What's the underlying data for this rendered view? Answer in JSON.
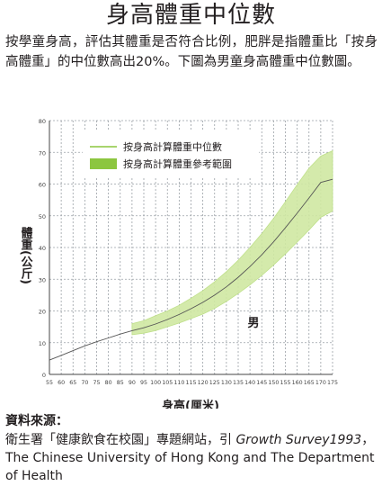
{
  "header": {
    "title": "身高體重中位數",
    "intro": "按學童身高，評估其體重是否符合比例，肥胖是指體重比「按身高體重」的中位數高出20%。下圖為男童身高體重中位數圖。"
  },
  "source": {
    "heading": "資料來源：",
    "text_plain_1": "衛生署「健康飲食在校園」專題網站，引 ",
    "text_italic": "Growth Survey1993",
    "text_plain_2": "，The Chinese University of Hong Kong and The Department of Health"
  },
  "colors": {
    "median_line": "#8cc63f",
    "range_band": "#cfe8a2",
    "band_edge": "#bfe08a",
    "grid": "#9aa0a6",
    "axis": "#444444"
  },
  "chart_data": {
    "type": "line",
    "title": "",
    "xlabel": "身高(厘米)",
    "ylabel": "體重(公斤)",
    "xlim": [
      55,
      175
    ],
    "ylim": [
      0,
      80
    ],
    "x_ticks": [
      55,
      60,
      65,
      70,
      75,
      80,
      85,
      90,
      95,
      100,
      105,
      110,
      115,
      120,
      125,
      130,
      135,
      140,
      145,
      150,
      155,
      160,
      165,
      170,
      175
    ],
    "y_ticks": [
      0,
      10,
      20,
      30,
      40,
      50,
      60,
      70,
      80
    ],
    "grid": true,
    "legend_position": "top-left",
    "series": [
      {
        "name": "按身高計算體重中位數",
        "kind": "line",
        "x": [
          55,
          60,
          65,
          70,
          75,
          80,
          85,
          90,
          95,
          100,
          105,
          110,
          115,
          120,
          125,
          130,
          135,
          140,
          145,
          150,
          155,
          160,
          165,
          170,
          175
        ],
        "y": [
          4.5,
          6,
          7.5,
          9,
          10.3,
          11.5,
          12.7,
          13.8,
          14.7,
          15.9,
          17.3,
          18.9,
          20.7,
          22.7,
          25,
          27.6,
          30.6,
          34,
          37.7,
          41.8,
          46.2,
          50.8,
          55.6,
          60.5,
          61.5
        ]
      },
      {
        "name": "按身高計算體重參考範圍",
        "kind": "band",
        "x": [
          90,
          95,
          100,
          105,
          110,
          115,
          120,
          125,
          130,
          135,
          140,
          145,
          150,
          155,
          160,
          165,
          170,
          175
        ],
        "lower": [
          12.5,
          13,
          13.8,
          15,
          16.2,
          17.6,
          19,
          20.8,
          23,
          25.5,
          28.2,
          31.2,
          34.5,
          38,
          41.7,
          45.5,
          49.5,
          51.5
        ],
        "upper": [
          16,
          16.9,
          18.5,
          20,
          21.8,
          24,
          26.4,
          29.2,
          32.4,
          36,
          40,
          44.4,
          49.2,
          54.4,
          59.8,
          65,
          68.8,
          70.5
        ]
      }
    ],
    "annotations": [
      {
        "text": "男",
        "x": 139,
        "y": 15
      }
    ]
  }
}
